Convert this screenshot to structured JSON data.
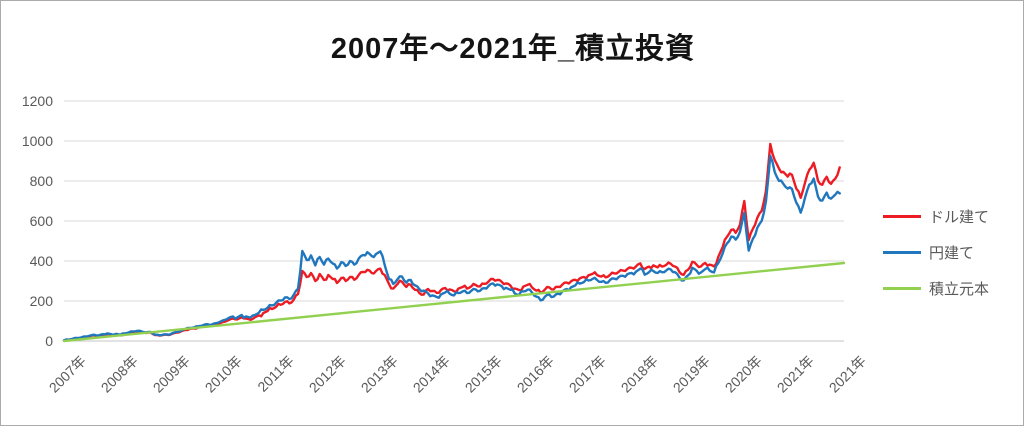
{
  "title": "2007年～2021年_積立投資",
  "chart_data": {
    "type": "line",
    "title": "2007年～2021年_積立投資",
    "xlabel": "",
    "ylabel": "",
    "grid": true,
    "legend_position": "right",
    "y_axis": {
      "min": 0,
      "max": 1200,
      "ticks": [
        0,
        200,
        400,
        600,
        800,
        1000,
        1200
      ]
    },
    "x_axis": {
      "start_year": 2007,
      "tick_labels": [
        "2007年",
        "2008年",
        "2009年",
        "2010年",
        "2011年",
        "2012年",
        "2013年",
        "2014年",
        "2015年",
        "2016年",
        "2017年",
        "2018年",
        "2019年",
        "2020年",
        "2021年",
        "2021年"
      ]
    },
    "series": [
      {
        "name": "ドル建て",
        "color": "#ed1c24",
        "points_per_year": 12,
        "values": [
          2,
          6,
          9,
          13,
          16,
          21,
          24,
          28,
          25,
          31,
          35,
          30,
          33,
          28,
          35,
          40,
          45,
          48,
          44,
          40,
          42,
          30,
          27,
          31,
          30,
          36,
          42,
          48,
          55,
          60,
          63,
          68,
          72,
          78,
          75,
          82,
          88,
          96,
          105,
          112,
          108,
          118,
          112,
          106,
          118,
          128,
          140,
          150,
          160,
          172,
          181,
          195,
          188,
          206,
          235,
          350,
          320,
          340,
          300,
          335,
          305,
          330,
          310,
          290,
          315,
          300,
          320,
          306,
          330,
          345,
          356,
          340,
          350,
          362,
          330,
          285,
          262,
          286,
          296,
          270,
          281,
          256,
          240,
          232,
          260,
          250,
          241,
          255,
          265,
          258,
          249,
          262,
          270,
          262,
          273,
          280,
          273,
          286,
          298,
          310,
          305,
          296,
          288,
          278,
          262,
          255,
          272,
          281,
          268,
          252,
          241,
          258,
          268,
          258,
          271,
          282,
          292,
          298,
          306,
          313,
          320,
          328,
          336,
          330,
          322,
          318,
          331,
          338,
          346,
          352,
          360,
          366,
          373,
          388,
          360,
          372,
          378,
          368,
          372,
          381,
          386,
          372,
          346,
          331,
          356,
          396,
          381,
          373,
          390,
          382,
          373,
          421,
          470,
          521,
          556,
          541,
          581,
          700,
          505,
          562,
          616,
          651,
          752,
          985,
          905,
          862,
          846,
          822,
          831,
          762,
          716,
          791,
          856,
          891,
          801,
          781,
          821,
          786,
          812,
          868
        ]
      },
      {
        "name": "円建て",
        "color": "#2077be",
        "points_per_year": 12,
        "values": [
          3,
          7,
          11,
          15,
          18,
          23,
          27,
          31,
          28,
          34,
          38,
          33,
          36,
          31,
          38,
          43,
          48,
          51,
          47,
          43,
          45,
          32,
          29,
          33,
          32,
          39,
          46,
          52,
          60,
          65,
          68,
          74,
          78,
          84,
          81,
          89,
          96,
          105,
          115,
          123,
          118,
          130,
          123,
          117,
          130,
          142,
          156,
          167,
          178,
          192,
          202,
          218,
          210,
          231,
          262,
          450,
          405,
          428,
          378,
          420,
          382,
          412,
          388,
          362,
          394,
          375,
          400,
          382,
          412,
          430,
          444,
          425,
          435,
          448,
          380,
          310,
          285,
          310,
          322,
          292,
          305,
          278,
          260,
          252,
          238,
          228,
          220,
          233,
          243,
          236,
          228,
          240,
          248,
          240,
          251,
          258,
          251,
          264,
          276,
          288,
          283,
          274,
          266,
          256,
          238,
          230,
          248,
          257,
          242,
          222,
          203,
          222,
          232,
          222,
          237,
          248,
          260,
          268,
          278,
          287,
          295,
          303,
          311,
          305,
          296,
          291,
          305,
          312,
          320,
          326,
          334,
          340,
          347,
          362,
          332,
          344,
          350,
          340,
          344,
          353,
          358,
          344,
          318,
          303,
          328,
          366,
          351,
          343,
          360,
          352,
          343,
          390,
          438,
          488,
          522,
          507,
          546,
          640,
          452,
          512,
          566,
          601,
          700,
          925,
          845,
          800,
          786,
          762,
          760,
          692,
          642,
          716,
          782,
          812,
          722,
          702,
          742,
          712,
          732,
          738
        ]
      },
      {
        "name": "積立元本",
        "color": "#92d050",
        "linear": {
          "x0": 2007,
          "v0": 0,
          "x1": 2022,
          "v1": 390
        }
      }
    ]
  }
}
